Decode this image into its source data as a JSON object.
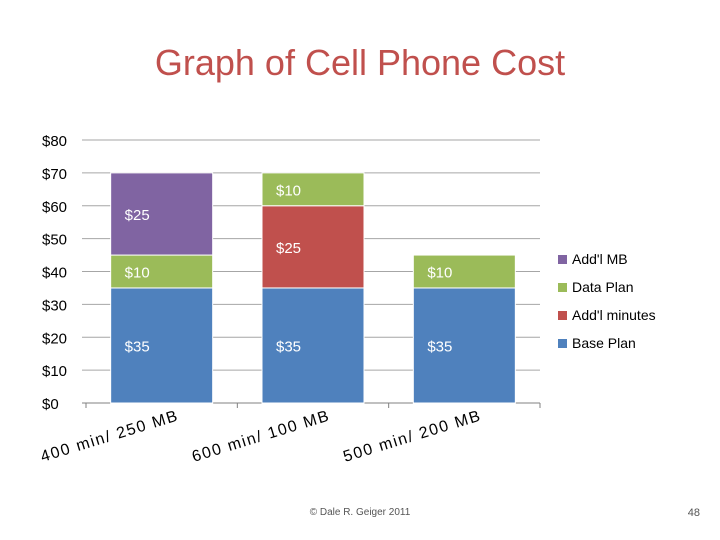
{
  "slide": {
    "title": "Graph of Cell Phone Cost",
    "footer": "© Dale R. Geiger 2011",
    "page_number": "48"
  },
  "chart_data": {
    "type": "bar",
    "stacked": true,
    "title": "",
    "xlabel": "",
    "ylabel": "",
    "ylim": [
      0,
      80
    ],
    "y_tick_labels": [
      "$0",
      "$10",
      "$20",
      "$30",
      "$40",
      "$50",
      "$60",
      "$70",
      "$80"
    ],
    "grid": true,
    "legend_position": "right",
    "categories": [
      "400 min/ 250 MB",
      "600 min/ 100 MB",
      "500 min/ 200 MB"
    ],
    "series": [
      {
        "name": "Base Plan",
        "color": "#4f81bd",
        "values": [
          35,
          35,
          35
        ],
        "labels": [
          "$35",
          "$35",
          "$35"
        ]
      },
      {
        "name": "Add'l minutes",
        "color": "#c0504d",
        "values": [
          0,
          25,
          0
        ],
        "labels": [
          "",
          "$25",
          ""
        ]
      },
      {
        "name": "Data Plan",
        "color": "#9bbb59",
        "values": [
          10,
          10,
          10
        ],
        "labels": [
          "$10",
          "$10",
          "$10"
        ]
      },
      {
        "name": "Add'l MB",
        "color": "#8064a2",
        "values": [
          25,
          0,
          0
        ],
        "labels": [
          "$25",
          "",
          ""
        ]
      }
    ],
    "legend_order": [
      "Add'l MB",
      "Data Plan",
      "Add'l minutes",
      "Base Plan"
    ]
  }
}
